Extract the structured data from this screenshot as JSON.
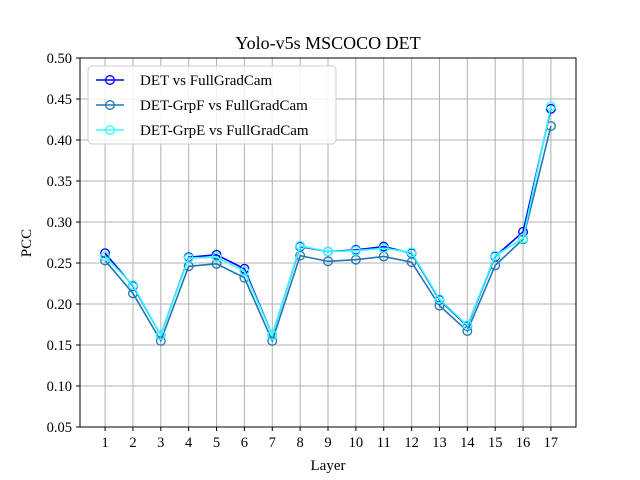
{
  "chart_data": {
    "type": "line",
    "title": "Yolo-v5s MSCOCO DET",
    "xlabel": "Layer",
    "ylabel": "PCC",
    "x": [
      1,
      2,
      3,
      4,
      5,
      6,
      7,
      8,
      9,
      10,
      11,
      12,
      13,
      14,
      15,
      16,
      17
    ],
    "xlim": [
      0.1,
      17.9
    ],
    "ylim": [
      0.05,
      0.5
    ],
    "yticks": [
      0.05,
      0.1,
      0.15,
      0.2,
      0.25,
      0.3,
      0.35,
      0.4,
      0.45,
      0.5
    ],
    "grid": true,
    "legend_position": "top-left",
    "series": [
      {
        "name": "DET vs FullGradCam",
        "color": "#0000ff",
        "values": [
          0.262,
          0.222,
          0.162,
          0.257,
          0.26,
          0.243,
          0.162,
          0.27,
          0.264,
          0.266,
          0.27,
          0.262,
          0.205,
          0.173,
          0.258,
          0.288,
          0.438
        ]
      },
      {
        "name": "DET-GrpF vs FullGradCam",
        "color": "#1f77b4",
        "values": [
          0.253,
          0.213,
          0.155,
          0.246,
          0.249,
          0.232,
          0.155,
          0.259,
          0.252,
          0.254,
          0.258,
          0.251,
          0.198,
          0.167,
          0.247,
          0.279,
          0.417
        ]
      },
      {
        "name": "DET-GrpE vs FullGradCam",
        "color": "#33ffff",
        "values": [
          0.258,
          0.223,
          0.162,
          0.256,
          0.257,
          0.24,
          0.162,
          0.271,
          0.264,
          0.265,
          0.268,
          0.263,
          0.206,
          0.174,
          0.259,
          0.28,
          0.441
        ]
      }
    ]
  }
}
